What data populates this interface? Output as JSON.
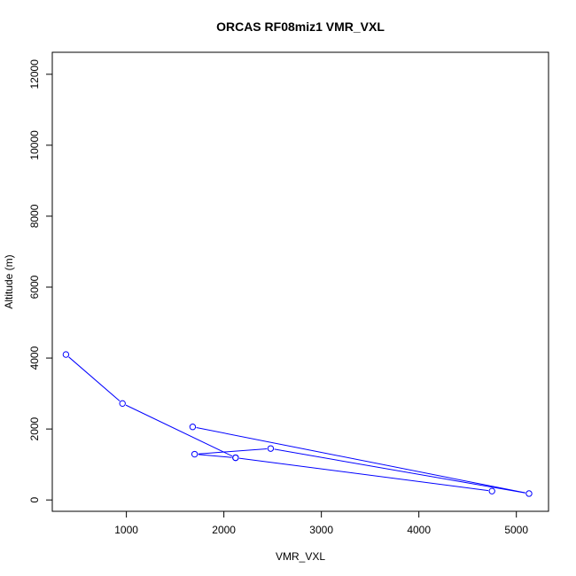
{
  "chart_data": {
    "type": "line",
    "title": "ORCAS RF08miz1 VMR_VXL",
    "xlabel": "VMR_VXL",
    "ylabel": "Altitude (m)",
    "xlim": [
      240,
      5330
    ],
    "ylim": [
      -320,
      12620
    ],
    "xticks": [
      1000,
      2000,
      3000,
      4000,
      5000
    ],
    "yticks": [
      0,
      2000,
      4000,
      6000,
      8000,
      10000,
      12000
    ],
    "grid": false,
    "series": [
      {
        "color": "#0000ff",
        "points": [
          {
            "x": 380,
            "y": 4100
          },
          {
            "x": 960,
            "y": 2720
          },
          {
            "x": 2120,
            "y": 1190
          },
          {
            "x": 1700,
            "y": 1290
          },
          {
            "x": 2480,
            "y": 1450
          },
          {
            "x": 5130,
            "y": 180
          },
          {
            "x": 1680,
            "y": 2060
          }
        ]
      },
      {
        "color": "#0000ff",
        "points": [
          {
            "x": 2120,
            "y": 1190
          },
          {
            "x": 4750,
            "y": 250
          }
        ]
      }
    ]
  }
}
